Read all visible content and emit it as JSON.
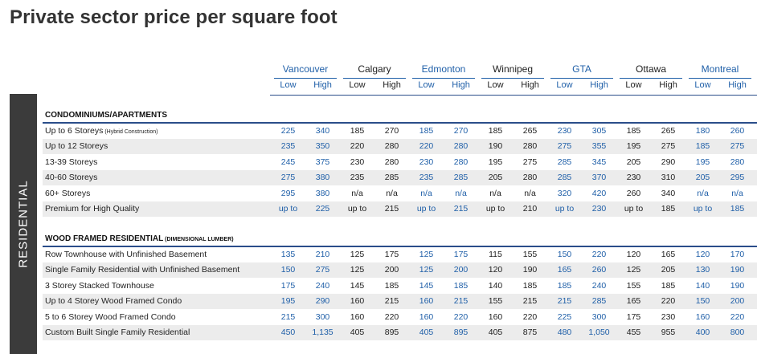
{
  "title": "Private sector price per square foot",
  "sidebar_label": "RESIDENTIAL",
  "cities": [
    "Vancouver",
    "Calgary",
    "Edmonton",
    "Winnipeg",
    "GTA",
    "Ottawa",
    "Montreal"
  ],
  "low_label": "Low",
  "high_label": "High",
  "sections": [
    {
      "title": "CONDOMINIUMS/APARTMENTS",
      "title_note": "",
      "rows": [
        {
          "label": "Up to 6 Storeys",
          "note": "(Hybrid Construction)",
          "values": [
            "225",
            "340",
            "185",
            "270",
            "185",
            "270",
            "185",
            "265",
            "230",
            "305",
            "185",
            "265",
            "180",
            "260"
          ]
        },
        {
          "label": "Up to 12 Storeys",
          "note": "",
          "values": [
            "235",
            "350",
            "220",
            "280",
            "220",
            "280",
            "190",
            "280",
            "275",
            "355",
            "195",
            "275",
            "185",
            "275"
          ]
        },
        {
          "label": "13-39 Storeys",
          "note": "",
          "values": [
            "245",
            "375",
            "230",
            "280",
            "230",
            "280",
            "195",
            "275",
            "285",
            "345",
            "205",
            "290",
            "195",
            "280"
          ]
        },
        {
          "label": "40-60 Storeys",
          "note": "",
          "values": [
            "275",
            "380",
            "235",
            "285",
            "235",
            "285",
            "205",
            "280",
            "285",
            "370",
            "230",
            "310",
            "205",
            "295"
          ]
        },
        {
          "label": "60+ Storeys",
          "note": "",
          "values": [
            "295",
            "380",
            "n/a",
            "n/a",
            "n/a",
            "n/a",
            "n/a",
            "n/a",
            "320",
            "420",
            "260",
            "340",
            "n/a",
            "n/a"
          ]
        },
        {
          "label": "Premium for High Quality",
          "note": "",
          "values": [
            "up to",
            "225",
            "up to",
            "215",
            "up to",
            "215",
            "up to",
            "210",
            "up to",
            "230",
            "up to",
            "185",
            "up to",
            "185"
          ]
        }
      ]
    },
    {
      "title": "WOOD FRAMED RESIDENTIAL",
      "title_note": "(DIMENSIONAL LUMBER)",
      "rows": [
        {
          "label": "Row Townhouse with Unfinished Basement",
          "note": "",
          "values": [
            "135",
            "210",
            "125",
            "175",
            "125",
            "175",
            "115",
            "155",
            "150",
            "220",
            "120",
            "165",
            "120",
            "170"
          ]
        },
        {
          "label": "Single Family Residential with Unfinished Basement",
          "note": "",
          "values": [
            "150",
            "275",
            "125",
            "200",
            "125",
            "200",
            "120",
            "190",
            "165",
            "260",
            "125",
            "205",
            "130",
            "190"
          ]
        },
        {
          "label": "3 Storey Stacked Townhouse",
          "note": "",
          "values": [
            "175",
            "240",
            "145",
            "185",
            "145",
            "185",
            "140",
            "185",
            "185",
            "240",
            "155",
            "185",
            "140",
            "190"
          ]
        },
        {
          "label": "Up to 4 Storey Wood Framed Condo",
          "note": "",
          "values": [
            "195",
            "290",
            "160",
            "215",
            "160",
            "215",
            "155",
            "215",
            "215",
            "285",
            "165",
            "220",
            "150",
            "200"
          ]
        },
        {
          "label": "5 to 6 Storey Wood Framed Condo",
          "note": "",
          "values": [
            "215",
            "300",
            "160",
            "220",
            "160",
            "220",
            "160",
            "220",
            "225",
            "300",
            "175",
            "230",
            "160",
            "220"
          ]
        },
        {
          "label": "Custom Built Single Family Residential",
          "note": "",
          "values": [
            "450",
            "1,135",
            "405",
            "895",
            "405",
            "895",
            "405",
            "875",
            "480",
            "1,050",
            "455",
            "955",
            "400",
            "800"
          ]
        }
      ]
    }
  ],
  "colors": {
    "blue": "#1f5fa8",
    "dark": "#222222",
    "shade": "#ececec",
    "sidebar": "#3b3b3b",
    "rule": "#2a4d8a"
  }
}
